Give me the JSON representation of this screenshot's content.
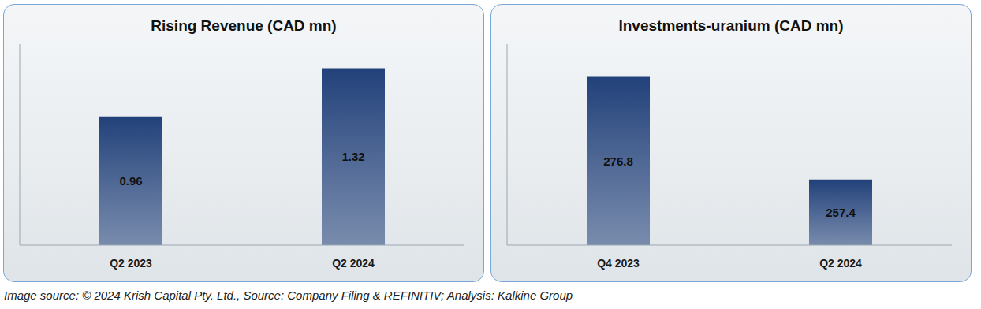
{
  "chart_data": [
    {
      "type": "bar",
      "title": "Rising Revenue (CAD mn)",
      "categories": [
        "Q2 2023",
        "Q2 2024"
      ],
      "values": [
        0.96,
        1.32
      ],
      "color": "#22417a",
      "ylim": [
        0,
        1.5
      ],
      "grid": false,
      "data_labels": true,
      "tick_labels": "x"
    },
    {
      "type": "bar",
      "title": "Investments-uranium (CAD mn)",
      "categories": [
        "Q4 2023",
        "Q2 2024"
      ],
      "values": [
        276.8,
        257.4
      ],
      "color": "#22417a",
      "ylim": [
        245,
        283
      ],
      "grid": false,
      "data_labels": true,
      "tick_labels": "x"
    }
  ],
  "footer": "Image source: © 2024 Krish Capital Pty. Ltd., Source: Company Filing & REFINITIV; Analysis: Kalkine Group"
}
